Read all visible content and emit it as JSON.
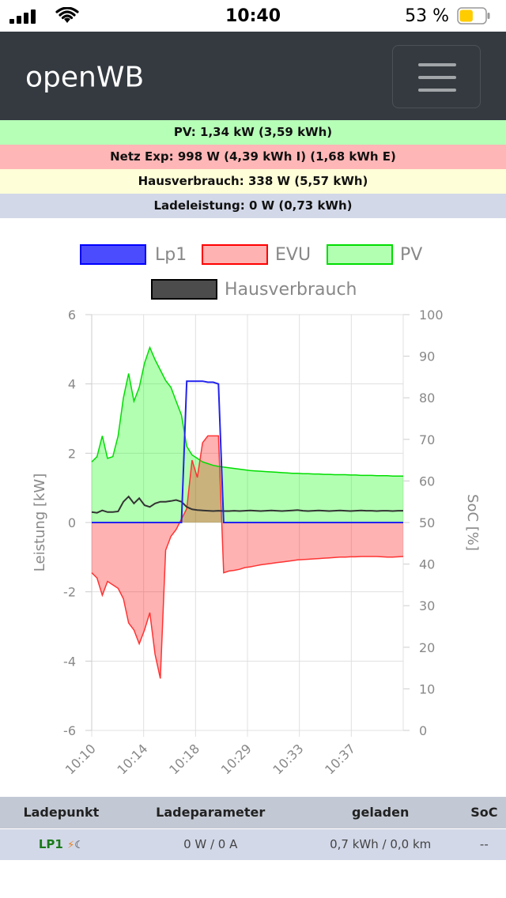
{
  "status_bar": {
    "time": "10:40",
    "battery_percent": "53 %",
    "battery_level": 0.53,
    "icons": [
      "signal-icon",
      "wifi-icon",
      "battery-icon"
    ]
  },
  "navbar": {
    "brand": "openWB",
    "menu_icon": "hamburger-menu-icon"
  },
  "summary": {
    "pv": "PV: 1,34 kW (3,59 kWh)",
    "netz": "Netz Exp: 998 W (4,39 kWh I) (1,68 kWh E)",
    "haus": "Hausverbrauch: 338 W (5,57 kWh)",
    "lade": "Ladeleistung: 0 W (0,73 kWh)"
  },
  "colors": {
    "pv_row": "#b6ffb7",
    "netz_row": "#ffb6b6",
    "haus_row": "#fefed8",
    "lade_row": "#d2d8e8",
    "navbar": "#343a40",
    "lp1": "#0000ff",
    "evu": "#ff0000",
    "pv": "#00ff00",
    "haus": "#000000"
  },
  "chart_data": {
    "type": "area",
    "ylabel": "Leistung [kW]",
    "y2label": "SoC [%]",
    "ylim": [
      -6,
      6
    ],
    "y2lim": [
      0,
      100
    ],
    "yticks": [
      "6",
      "4",
      "2",
      "0",
      "-2",
      "-4",
      "-6"
    ],
    "y2ticks": [
      "100",
      "90",
      "80",
      "70",
      "60",
      "50",
      "40",
      "30",
      "20",
      "10",
      "0"
    ],
    "xticks": [
      "10:10",
      "10:14",
      "10:18",
      "10:29",
      "10:33",
      "10:37"
    ],
    "grid": true,
    "legend_position": "top",
    "legend": [
      "Lp1",
      "EVU",
      "PV",
      "Hausverbrauch"
    ],
    "x": [
      0,
      1,
      2,
      3,
      4,
      5,
      6,
      7,
      8,
      9,
      10,
      11,
      12,
      13,
      14,
      15,
      16,
      17,
      18,
      19,
      20,
      21,
      22,
      23,
      24,
      25,
      26,
      27,
      28,
      29,
      30,
      31,
      32,
      33,
      34,
      35,
      36,
      37,
      38,
      39,
      40,
      41,
      42,
      43,
      44,
      45,
      46,
      47,
      48,
      49,
      50,
      51,
      52,
      53,
      54,
      55,
      56,
      57,
      58,
      59
    ],
    "series": [
      {
        "name": "Lp1",
        "values": [
          0,
          0,
          0,
          0,
          0,
          0,
          0,
          0,
          0,
          0,
          0,
          0,
          0,
          0,
          0,
          0,
          0,
          0,
          4.08,
          4.08,
          4.08,
          4.08,
          4.05,
          4.05,
          4.0,
          0,
          0,
          0,
          0,
          0,
          0,
          0,
          0,
          0,
          0,
          0,
          0,
          0,
          0,
          0,
          0,
          0,
          0,
          0,
          0,
          0,
          0,
          0,
          0,
          0,
          0,
          0,
          0,
          0,
          0,
          0,
          0,
          0,
          0,
          0
        ]
      },
      {
        "name": "EVU",
        "values": [
          -1.45,
          -1.6,
          -2.1,
          -1.7,
          -1.8,
          -1.9,
          -2.2,
          -2.9,
          -3.1,
          -3.5,
          -3.1,
          -2.6,
          -3.8,
          -4.5,
          -0.8,
          -0.4,
          -0.2,
          0.1,
          0.4,
          1.8,
          1.3,
          2.3,
          2.5,
          2.5,
          2.5,
          -1.45,
          -1.4,
          -1.38,
          -1.35,
          -1.3,
          -1.28,
          -1.25,
          -1.22,
          -1.2,
          -1.18,
          -1.16,
          -1.14,
          -1.12,
          -1.1,
          -1.08,
          -1.07,
          -1.06,
          -1.05,
          -1.04,
          -1.03,
          -1.02,
          -1.01,
          -1.0,
          -1.0,
          -0.99,
          -0.99,
          -0.98,
          -0.98,
          -0.98,
          -0.98,
          -0.99,
          -1.0,
          -1.0,
          -0.99,
          -0.98
        ]
      },
      {
        "name": "PV",
        "values": [
          1.75,
          1.9,
          2.5,
          1.85,
          1.9,
          2.5,
          3.6,
          4.3,
          3.5,
          3.9,
          4.6,
          5.05,
          4.7,
          4.4,
          4.1,
          3.9,
          3.5,
          3.1,
          2.2,
          1.95,
          1.85,
          1.75,
          1.7,
          1.65,
          1.62,
          1.6,
          1.58,
          1.56,
          1.54,
          1.52,
          1.5,
          1.49,
          1.48,
          1.47,
          1.46,
          1.45,
          1.44,
          1.43,
          1.42,
          1.42,
          1.41,
          1.41,
          1.4,
          1.4,
          1.39,
          1.39,
          1.38,
          1.38,
          1.38,
          1.37,
          1.37,
          1.36,
          1.36,
          1.36,
          1.35,
          1.35,
          1.35,
          1.34,
          1.34,
          1.34
        ]
      },
      {
        "name": "Hausverbrauch",
        "values": [
          0.3,
          0.28,
          0.35,
          0.3,
          0.3,
          0.32,
          0.6,
          0.75,
          0.55,
          0.7,
          0.5,
          0.45,
          0.55,
          0.6,
          0.6,
          0.62,
          0.65,
          0.6,
          0.45,
          0.38,
          0.36,
          0.35,
          0.34,
          0.33,
          0.34,
          0.33,
          0.33,
          0.34,
          0.33,
          0.34,
          0.35,
          0.34,
          0.33,
          0.34,
          0.35,
          0.34,
          0.33,
          0.34,
          0.35,
          0.36,
          0.34,
          0.33,
          0.34,
          0.35,
          0.34,
          0.33,
          0.34,
          0.35,
          0.34,
          0.33,
          0.34,
          0.35,
          0.34,
          0.34,
          0.33,
          0.34,
          0.34,
          0.33,
          0.34,
          0.34
        ]
      }
    ]
  },
  "table": {
    "headers": [
      "Ladepunkt",
      "Ladeparameter",
      "geladen",
      "SoC"
    ],
    "rows": [
      {
        "name": "LP1",
        "plug_icon": "plug-icon",
        "mode_icon": "moon-icon",
        "parameter": "0 W / 0 A",
        "geladen": "0,7 kWh / 0,0 km",
        "soc": "--"
      }
    ]
  }
}
